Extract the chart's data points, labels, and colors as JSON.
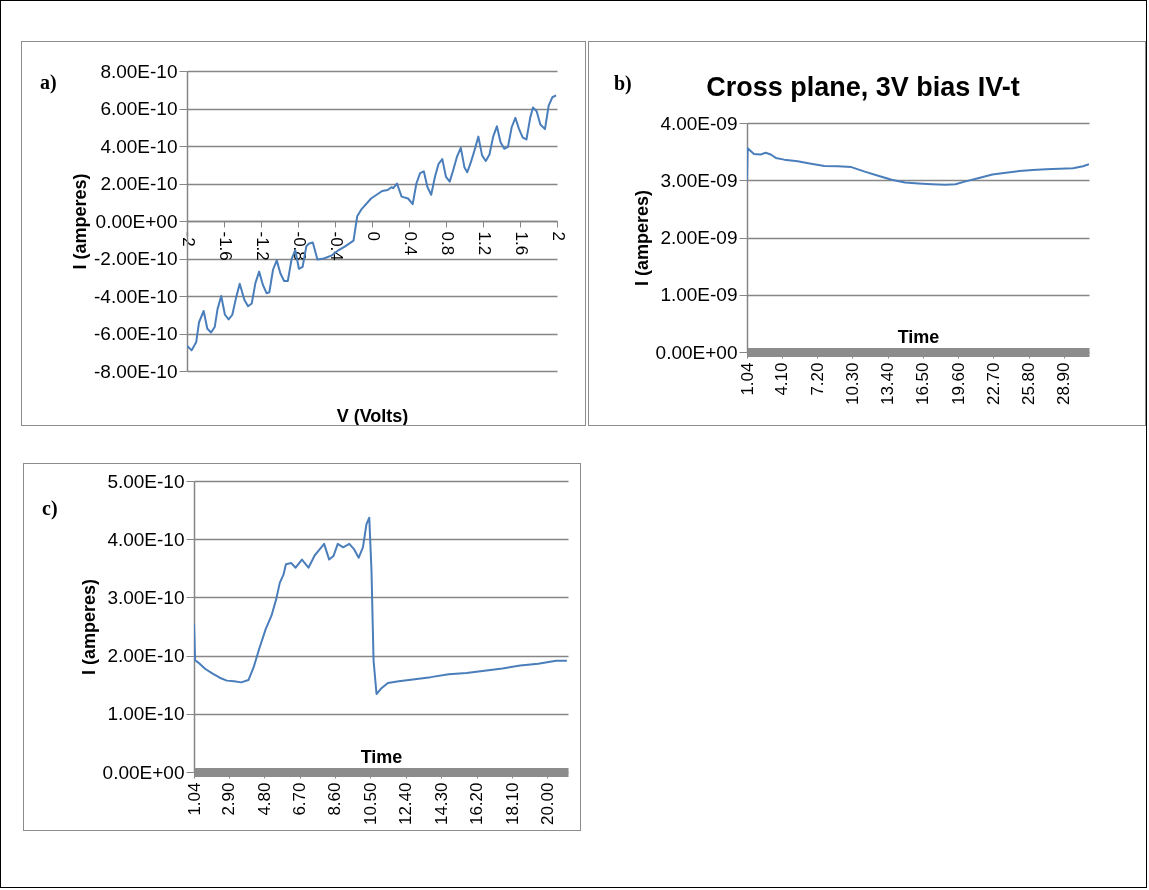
{
  "chart_data": [
    {
      "type": "line",
      "xlabel": "V (Volts)",
      "ylabel": "I (amperes)",
      "annotations": [
        "a)"
      ],
      "color": "#4a7ebb",
      "grid": "y",
      "x": [
        -2,
        -1.95,
        -1.9,
        -1.87,
        -1.82,
        -1.78,
        -1.74,
        -1.7,
        -1.67,
        -1.63,
        -1.59,
        -1.55,
        -1.51,
        -1.47,
        -1.43,
        -1.38,
        -1.34,
        -1.3,
        -1.26,
        -1.22,
        -1.18,
        -1.14,
        -1.11,
        -1.07,
        -1.03,
        -0.99,
        -0.95,
        -0.91,
        -0.87,
        -0.83,
        -0.79,
        -0.75,
        -0.71,
        -0.68,
        -0.64,
        -0.59,
        -0.52,
        -0.44,
        -0.36,
        -0.29,
        -0.2,
        -0.16,
        -0.11,
        -0.01,
        0.11,
        0.17,
        0.21,
        0.23,
        0.27,
        0.32,
        0.39,
        0.44,
        0.48,
        0.52,
        0.56,
        0.6,
        0.64,
        0.68,
        0.72,
        0.76,
        0.8,
        0.84,
        0.88,
        0.92,
        0.96,
        1,
        1.03,
        1.07,
        1.11,
        1.15,
        1.19,
        1.23,
        1.27,
        1.31,
        1.35,
        1.39,
        1.43,
        1.47,
        1.51,
        1.55,
        1.59,
        1.63,
        1.67,
        1.71,
        1.74,
        1.78,
        1.82,
        1.87,
        1.91,
        1.95,
        1.99
      ],
      "values": [
        -6.65e-10,
        -6.9e-10,
        -6.45e-10,
        -5.4e-10,
        -4.8e-10,
        -5.75e-10,
        -5.95e-10,
        -5.65e-10,
        -4.7e-10,
        -4e-10,
        -5e-10,
        -5.25e-10,
        -5e-10,
        -4.1e-10,
        -3.35e-10,
        -4.2e-10,
        -4.55e-10,
        -4.4e-10,
        -3.3e-10,
        -2.7e-10,
        -3.4e-10,
        -3.85e-10,
        -3.8e-10,
        -2.6e-10,
        -2.1e-10,
        -2.8e-10,
        -3.2e-10,
        -3.2e-10,
        -2.05e-10,
        -1.55e-10,
        -2.55e-10,
        -2.45e-10,
        -1.35e-10,
        -1.2e-10,
        -1.15e-10,
        -2.05e-10,
        -2e-10,
        -1.85e-10,
        -1.55e-10,
        -1.35e-10,
        -1.05e-10,
        2.5e-11,
        6.5e-11,
        1.2e-10,
        1.6e-10,
        1.65e-10,
        1.8e-10,
        1.75e-10,
        2e-10,
        1.3e-10,
        1.2e-10,
        9e-11,
        2e-10,
        2.55e-10,
        2.65e-10,
        1.8e-10,
        1.4e-10,
        2.35e-10,
        3.05e-10,
        3.3e-10,
        2.35e-10,
        2.1e-10,
        2.75e-10,
        3.45e-10,
        3.9e-10,
        2.85e-10,
        2.6e-10,
        3.15e-10,
        3.8e-10,
        4.5e-10,
        3.5e-10,
        3.2e-10,
        3.55e-10,
        4.5e-10,
        5.05e-10,
        4.2e-10,
        3.85e-10,
        3.95e-10,
        5e-10,
        5.5e-10,
        4.9e-10,
        4.45e-10,
        4.35e-10,
        5.5e-10,
        6.05e-10,
        5.85e-10,
        5.15e-10,
        4.9e-10,
        6.15e-10,
        6.6e-10,
        6.7e-10
      ],
      "xlim": [
        -2,
        2
      ],
      "ylim": [
        -8e-10,
        8e-10
      ],
      "xticks": [
        -2,
        -1.6,
        -1.2,
        -0.8,
        -0.4,
        0,
        0.4,
        0.8,
        1.2,
        1.6,
        2
      ],
      "yticks": [
        {
          "value": 8e-10,
          "label": "8.00E-10"
        },
        {
          "value": 6e-10,
          "label": "6.00E-10"
        },
        {
          "value": 4e-10,
          "label": "4.00E-10"
        },
        {
          "value": 2e-10,
          "label": "2.00E-10"
        },
        {
          "value": 0,
          "label": "0.00E+00"
        },
        {
          "value": -2e-10,
          "label": "-2.00E-10"
        },
        {
          "value": -4e-10,
          "label": "-4.00E-10"
        },
        {
          "value": -6e-10,
          "label": "-6.00E-10"
        },
        {
          "value": -8e-10,
          "label": "-8.00E-10"
        }
      ]
    },
    {
      "type": "line",
      "title": "Cross plane, 3V bias IV-t",
      "xlabel": "Time",
      "ylabel": "I (amperes)",
      "annotations": [
        "b)"
      ],
      "color": "#4a7ebb",
      "grid": "y",
      "x": [
        1.04,
        1.1,
        1.65,
        2.24,
        2.68,
        3.13,
        3.57,
        4.31,
        5.49,
        6.67,
        7.85,
        9.03,
        10.21,
        11.39,
        12.57,
        13.75,
        14.93,
        16.11,
        17.3,
        18.48,
        19.36,
        20.25,
        21.43,
        22.61,
        23.79,
        24.97,
        26.15,
        27.33,
        28.51,
        29.69,
        30.58,
        31.1
      ],
      "values": [
        3e-09,
        3.56e-09,
        3.46e-09,
        3.45e-09,
        3.48e-09,
        3.45e-09,
        3.39e-09,
        3.36e-09,
        3.33e-09,
        3.29e-09,
        3.25e-09,
        3.245e-09,
        3.23e-09,
        3.15e-09,
        3.08e-09,
        3.01e-09,
        2.96e-09,
        2.945e-09,
        2.93e-09,
        2.92e-09,
        2.93e-09,
        2.98e-09,
        3.04e-09,
        3.1e-09,
        3.13e-09,
        3.16e-09,
        3.18e-09,
        3.19e-09,
        3.2e-09,
        3.21e-09,
        3.245e-09,
        3.28e-09
      ],
      "xlim": [
        1.04,
        31.1
      ],
      "ylim": [
        0,
        4e-09
      ],
      "xticks": [
        {
          "value": 1.04,
          "label": "1.04"
        },
        {
          "value": 4.1,
          "label": "4.10"
        },
        {
          "value": 7.2,
          "label": "7.20"
        },
        {
          "value": 10.3,
          "label": "10.30"
        },
        {
          "value": 13.4,
          "label": "13.40"
        },
        {
          "value": 16.5,
          "label": "16.50"
        },
        {
          "value": 19.6,
          "label": "19.60"
        },
        {
          "value": 22.7,
          "label": "22.70"
        },
        {
          "value": 25.8,
          "label": "25.80"
        },
        {
          "value": 28.9,
          "label": "28.90"
        }
      ],
      "yticks": [
        {
          "value": 4e-09,
          "label": "4.00E-09"
        },
        {
          "value": 3e-09,
          "label": "3.00E-09"
        },
        {
          "value": 2e-09,
          "label": "2.00E-09"
        },
        {
          "value": 1e-09,
          "label": "1.00E-09"
        },
        {
          "value": 0,
          "label": "0.00E+00"
        }
      ]
    },
    {
      "type": "line",
      "xlabel": "Time",
      "ylabel": "I (amperes)",
      "annotations": [
        "c)"
      ],
      "color": "#4a7ebb",
      "grid": "y",
      "x": [
        1.04,
        1.1,
        1.27,
        1.65,
        2.04,
        2.42,
        2.8,
        3.19,
        3.57,
        3.96,
        4.24,
        4.53,
        4.88,
        5.2,
        5.45,
        5.64,
        5.84,
        5.97,
        6.26,
        6.49,
        6.83,
        7.18,
        7.51,
        7.79,
        8.02,
        8.29,
        8.52,
        8.75,
        9.04,
        9.37,
        9.62,
        9.87,
        10.1,
        10.29,
        10.44,
        10.56,
        10.67,
        10.83,
        11.06,
        11.44,
        12.02,
        12.78,
        13.74,
        14.7,
        15.66,
        16.62,
        17.58,
        18.54,
        19.5,
        20.46,
        21.04
      ],
      "values": [
        2.55e-10,
        1.92e-10,
        1.88e-10,
        1.77e-10,
        1.69e-10,
        1.62e-10,
        1.57e-10,
        1.56e-10,
        1.54e-10,
        1.58e-10,
        1.8e-10,
        2.11e-10,
        2.45e-10,
        2.69e-10,
        2.97e-10,
        3.25e-10,
        3.39e-10,
        3.57e-10,
        3.59e-10,
        3.51e-10,
        3.65e-10,
        3.51e-10,
        3.72e-10,
        3.83e-10,
        3.92e-10,
        3.65e-10,
        3.71e-10,
        3.92e-10,
        3.86e-10,
        3.92e-10,
        3.83e-10,
        3.68e-10,
        3.86e-10,
        4.26e-10,
        4.37e-10,
        3.46e-10,
        1.92e-10,
        1.34e-10,
        1.43e-10,
        1.53e-10,
        1.56e-10,
        1.59e-10,
        1.63e-10,
        1.68e-10,
        1.7e-10,
        1.74e-10,
        1.78e-10,
        1.83e-10,
        1.86e-10,
        1.91e-10,
        1.91e-10
      ],
      "xlim": [
        1.04,
        21.1
      ],
      "ylim": [
        0,
        5e-10
      ],
      "xticks": [
        {
          "value": 1.04,
          "label": "1.04"
        },
        {
          "value": 2.9,
          "label": "2.90"
        },
        {
          "value": 4.8,
          "label": "4.80"
        },
        {
          "value": 6.7,
          "label": "6.70"
        },
        {
          "value": 8.6,
          "label": "8.60"
        },
        {
          "value": 10.5,
          "label": "10.50"
        },
        {
          "value": 12.4,
          "label": "12.40"
        },
        {
          "value": 14.3,
          "label": "14.30"
        },
        {
          "value": 16.2,
          "label": "16.20"
        },
        {
          "value": 18.1,
          "label": "18.10"
        },
        {
          "value": 20,
          "label": "20.00"
        }
      ],
      "yticks": [
        {
          "value": 5e-10,
          "label": "5.00E-10"
        },
        {
          "value": 4e-10,
          "label": "4.00E-10"
        },
        {
          "value": 3e-10,
          "label": "3.00E-10"
        },
        {
          "value": 2e-10,
          "label": "2.00E-10"
        },
        {
          "value": 1e-10,
          "label": "1.00E-10"
        },
        {
          "value": 0,
          "label": "0.00E+00"
        }
      ]
    }
  ]
}
